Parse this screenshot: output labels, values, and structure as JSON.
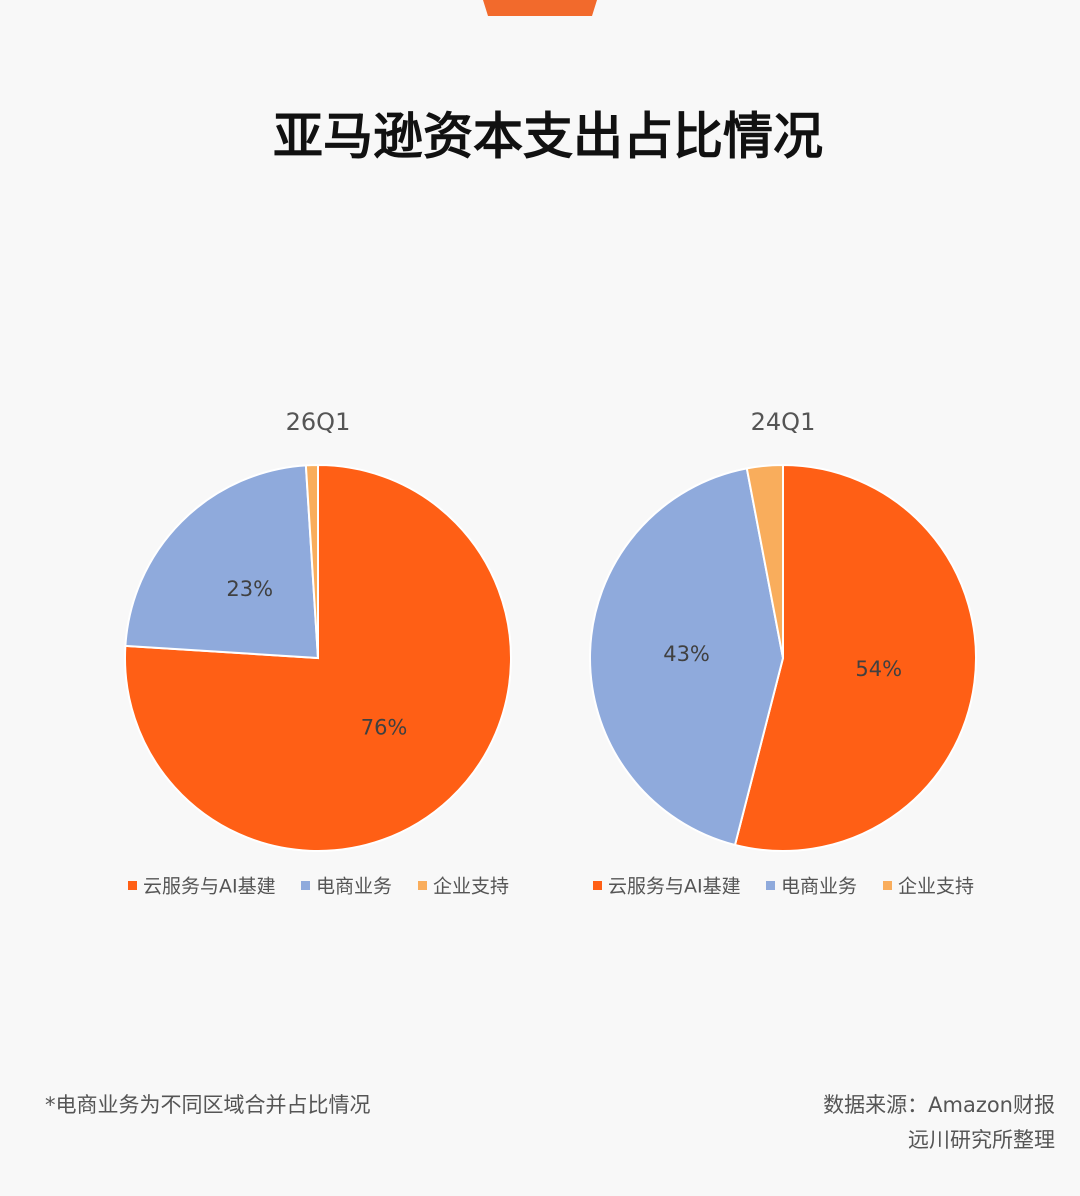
{
  "header": {
    "title": "亚马逊资本支出占比情况"
  },
  "chart_data": [
    {
      "type": "pie",
      "title": "26Q1",
      "categories": [
        "云服务与AI基建",
        "电商业务",
        "企业支持"
      ],
      "values": [
        76,
        23,
        1
      ],
      "value_labels": [
        "76%",
        "23%",
        null
      ],
      "colors": [
        "#ff5f15",
        "#8faadc",
        "#f9ad5c"
      ]
    },
    {
      "type": "pie",
      "title": "24Q1",
      "categories": [
        "云服务与AI基建",
        "电商业务",
        "企业支持"
      ],
      "values": [
        54,
        43,
        3
      ],
      "value_labels": [
        "54%",
        "43%",
        null
      ],
      "colors": [
        "#ff5f15",
        "#8faadc",
        "#f9ad5c"
      ]
    }
  ],
  "footnote": "*电商业务为不同区域合并占比情况",
  "source": [
    "数据来源：Amazon财报",
    "远川研究所整理"
  ]
}
